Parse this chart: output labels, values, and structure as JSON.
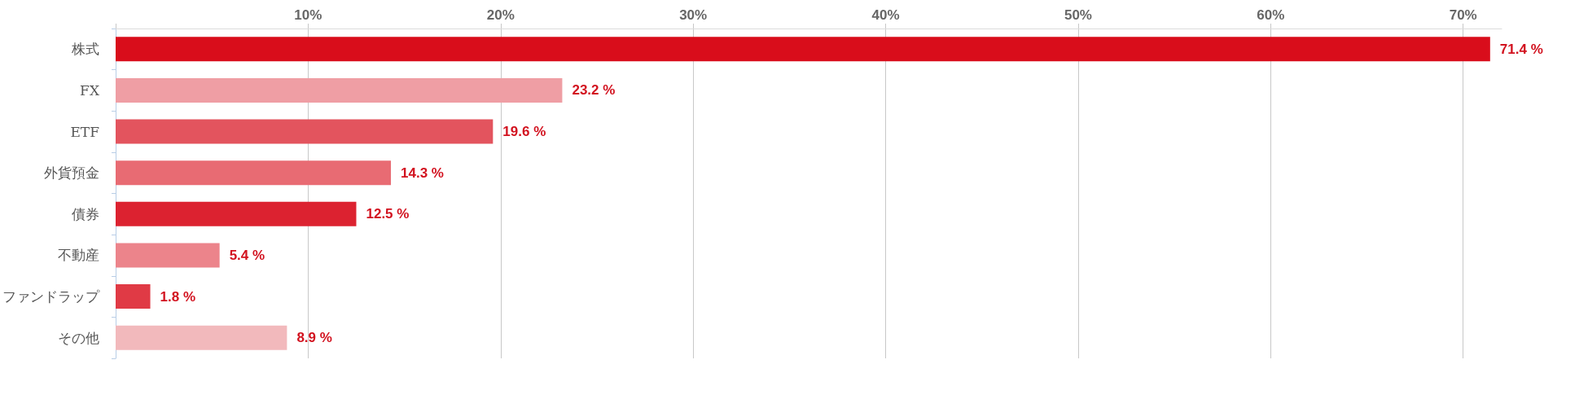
{
  "chart_data": {
    "type": "bar",
    "orientation": "horizontal",
    "categories": [
      "株式",
      "FX",
      "ETF",
      "外貨預金",
      "債券",
      "不動産",
      "ファンドラップ",
      "その他"
    ],
    "values": [
      71.4,
      23.2,
      19.6,
      14.3,
      12.5,
      5.4,
      1.8,
      8.9
    ],
    "colors": [
      "#d90d1b",
      "#ef9ea4",
      "#e3545e",
      "#e86b73",
      "#dc2230",
      "#ec848b",
      "#e03a45",
      "#f2b9bc"
    ],
    "value_labels": [
      "71.4 %",
      "23.2 %",
      "19.6 %",
      "14.3 %",
      "12.5 %",
      "5.4 %",
      "1.8 %",
      "8.9 %"
    ],
    "xlim": [
      0,
      72
    ],
    "xticks": [
      {
        "value": 0,
        "label": null
      },
      {
        "value": 10,
        "label": "10%"
      },
      {
        "value": 20,
        "label": "20%"
      },
      {
        "value": 30,
        "label": "30%"
      },
      {
        "value": 40,
        "label": "40%"
      },
      {
        "value": 50,
        "label": "50%"
      },
      {
        "value": 60,
        "label": "60%"
      },
      {
        "value": 70,
        "label": "70%"
      }
    ],
    "grid": "x"
  }
}
